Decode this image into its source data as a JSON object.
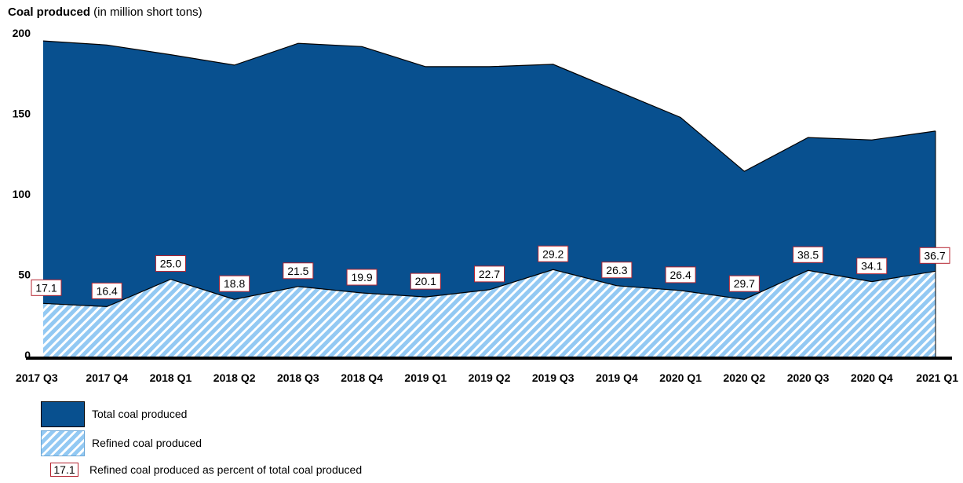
{
  "title": {
    "bold": "Coal produced",
    "rest": " (in million short tons)"
  },
  "colors": {
    "total": "#08508f",
    "refined": "#93c9f3",
    "pct_border": "#b4232f"
  },
  "chart_data": {
    "type": "area",
    "categories": [
      "2017 Q3",
      "2017 Q4",
      "2018 Q1",
      "2018 Q2",
      "2018 Q3",
      "2018 Q4",
      "2019 Q1",
      "2019 Q2",
      "2019 Q3",
      "2019 Q4",
      "2020 Q1",
      "2020 Q2",
      "2020 Q3",
      "2020 Q4",
      "2021 Q1"
    ],
    "ylim": [
      0,
      200
    ],
    "yticks": [
      0,
      50,
      100,
      150,
      200
    ],
    "series": [
      {
        "name": "Total coal produced",
        "values": [
          197,
          194.5,
          188.5,
          182,
          195.5,
          193.5,
          181,
          181,
          182.5,
          166,
          149.5,
          116,
          137,
          135.5,
          141
        ]
      },
      {
        "name": "Refined coal produced",
        "values": [
          34,
          32,
          49,
          36.5,
          44.5,
          40.5,
          38,
          42.5,
          55,
          45,
          42,
          36.5,
          54.5,
          47.5,
          54
        ]
      }
    ],
    "pct_labels": [
      "17.1",
      "16.4",
      "25.0",
      "18.8",
      "21.5",
      "19.9",
      "20.1",
      "22.7",
      "29.2",
      "26.3",
      "26.4",
      "29.7",
      "38.5",
      "34.1",
      "36.7"
    ],
    "legend": [
      "Total coal produced",
      "Refined coal produced",
      "Refined coal produced as percent of total coal produced"
    ],
    "legend_pct_sample": "17.1"
  }
}
